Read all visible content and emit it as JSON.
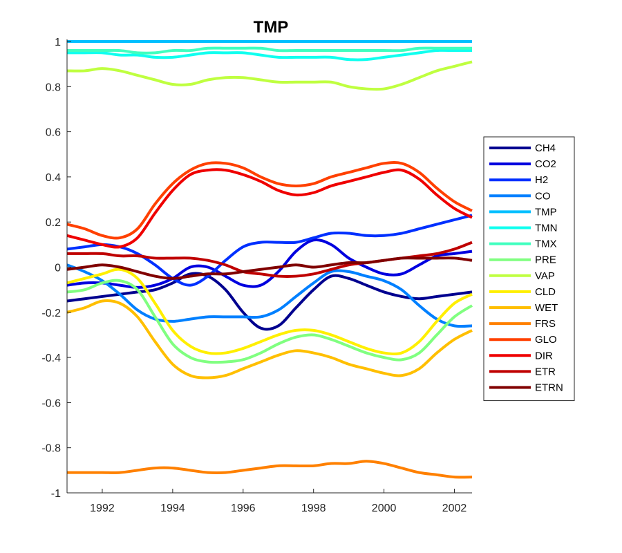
{
  "chart_data": {
    "type": "line",
    "title": "TMP",
    "xlabel": "",
    "ylabel": "",
    "xlim": [
      1991.0,
      2002.5
    ],
    "ylim": [
      -1,
      1
    ],
    "xticks": [
      1992,
      1994,
      1996,
      1998,
      2000,
      2002
    ],
    "yticks": [
      -1,
      -0.8,
      -0.6,
      -0.4,
      -0.2,
      0,
      0.2,
      0.4,
      0.6,
      0.8,
      1
    ],
    "grid": false,
    "legend_position": "right",
    "x": [
      1991.0,
      1991.5,
      1992.0,
      1992.5,
      1993.0,
      1993.5,
      1994.0,
      1994.5,
      1995.0,
      1995.5,
      1996.0,
      1996.5,
      1997.0,
      1997.5,
      1998.0,
      1998.5,
      1999.0,
      1999.5,
      2000.0,
      2000.5,
      2001.0,
      2001.5,
      2002.0,
      2002.5
    ],
    "series": [
      {
        "name": "CH4",
        "color": "#00008F",
        "values": [
          -0.15,
          -0.14,
          -0.13,
          -0.12,
          -0.11,
          -0.1,
          -0.07,
          -0.03,
          -0.04,
          -0.1,
          -0.2,
          -0.27,
          -0.26,
          -0.18,
          -0.1,
          -0.04,
          -0.05,
          -0.08,
          -0.11,
          -0.13,
          -0.14,
          -0.13,
          -0.12,
          -0.11
        ]
      },
      {
        "name": "CO2",
        "color": "#0000DF",
        "values": [
          -0.08,
          -0.07,
          -0.07,
          -0.08,
          -0.09,
          -0.08,
          -0.05,
          0.0,
          0.0,
          -0.04,
          -0.08,
          -0.08,
          -0.02,
          0.07,
          0.12,
          0.1,
          0.04,
          0.0,
          -0.03,
          -0.03,
          0.01,
          0.05,
          0.06,
          0.07
        ]
      },
      {
        "name": "H2",
        "color": "#0030FF",
        "values": [
          0.08,
          0.09,
          0.1,
          0.09,
          0.06,
          0.01,
          -0.05,
          -0.08,
          -0.04,
          0.03,
          0.09,
          0.11,
          0.11,
          0.11,
          0.13,
          0.15,
          0.15,
          0.14,
          0.14,
          0.15,
          0.17,
          0.19,
          0.21,
          0.23
        ]
      },
      {
        "name": "CO",
        "color": "#0080FF",
        "values": [
          0.01,
          -0.02,
          -0.06,
          -0.12,
          -0.19,
          -0.23,
          -0.24,
          -0.23,
          -0.22,
          -0.22,
          -0.22,
          -0.22,
          -0.19,
          -0.13,
          -0.07,
          -0.02,
          -0.02,
          -0.04,
          -0.06,
          -0.1,
          -0.17,
          -0.23,
          -0.26,
          -0.26
        ]
      },
      {
        "name": "TMP",
        "color": "#00BFFF",
        "values": [
          1.0,
          1.0,
          1.0,
          1.0,
          1.0,
          1.0,
          1.0,
          1.0,
          1.0,
          1.0,
          1.0,
          1.0,
          1.0,
          1.0,
          1.0,
          1.0,
          1.0,
          1.0,
          1.0,
          1.0,
          1.0,
          1.0,
          1.0,
          1.0
        ]
      },
      {
        "name": "TMN",
        "color": "#10FFEF",
        "values": [
          0.95,
          0.95,
          0.95,
          0.94,
          0.94,
          0.93,
          0.93,
          0.94,
          0.95,
          0.95,
          0.95,
          0.94,
          0.93,
          0.93,
          0.93,
          0.93,
          0.92,
          0.92,
          0.93,
          0.94,
          0.95,
          0.96,
          0.96,
          0.96
        ]
      },
      {
        "name": "TMX",
        "color": "#40FFBF",
        "values": [
          0.96,
          0.96,
          0.96,
          0.96,
          0.95,
          0.95,
          0.96,
          0.96,
          0.97,
          0.97,
          0.97,
          0.97,
          0.96,
          0.96,
          0.96,
          0.96,
          0.96,
          0.96,
          0.96,
          0.96,
          0.97,
          0.97,
          0.97,
          0.97
        ]
      },
      {
        "name": "PRE",
        "color": "#80FF80",
        "values": [
          -0.11,
          -0.1,
          -0.07,
          -0.06,
          -0.1,
          -0.22,
          -0.34,
          -0.4,
          -0.42,
          -0.42,
          -0.41,
          -0.38,
          -0.34,
          -0.31,
          -0.3,
          -0.32,
          -0.35,
          -0.38,
          -0.4,
          -0.41,
          -0.38,
          -0.3,
          -0.22,
          -0.17
        ]
      },
      {
        "name": "VAP",
        "color": "#BFFF40",
        "values": [
          0.87,
          0.87,
          0.88,
          0.87,
          0.85,
          0.83,
          0.81,
          0.81,
          0.83,
          0.84,
          0.84,
          0.83,
          0.82,
          0.82,
          0.82,
          0.82,
          0.8,
          0.79,
          0.79,
          0.81,
          0.84,
          0.87,
          0.89,
          0.91
        ]
      },
      {
        "name": "CLD",
        "color": "#FFEF00",
        "values": [
          -0.07,
          -0.05,
          -0.03,
          -0.01,
          -0.05,
          -0.16,
          -0.28,
          -0.35,
          -0.38,
          -0.38,
          -0.36,
          -0.33,
          -0.3,
          -0.28,
          -0.28,
          -0.3,
          -0.33,
          -0.36,
          -0.38,
          -0.38,
          -0.33,
          -0.24,
          -0.16,
          -0.12
        ]
      },
      {
        "name": "WET",
        "color": "#FFBF00",
        "values": [
          -0.2,
          -0.18,
          -0.15,
          -0.16,
          -0.22,
          -0.33,
          -0.43,
          -0.48,
          -0.49,
          -0.48,
          -0.45,
          -0.42,
          -0.39,
          -0.37,
          -0.38,
          -0.4,
          -0.43,
          -0.45,
          -0.47,
          -0.48,
          -0.45,
          -0.38,
          -0.32,
          -0.28
        ]
      },
      {
        "name": "FRS",
        "color": "#FF8000",
        "values": [
          -0.91,
          -0.91,
          -0.91,
          -0.91,
          -0.9,
          -0.89,
          -0.89,
          -0.9,
          -0.91,
          -0.91,
          -0.9,
          -0.89,
          -0.88,
          -0.88,
          -0.88,
          -0.87,
          -0.87,
          -0.86,
          -0.87,
          -0.89,
          -0.91,
          -0.92,
          -0.93,
          -0.93
        ]
      },
      {
        "name": "GLO",
        "color": "#FF4000",
        "values": [
          0.19,
          0.17,
          0.14,
          0.13,
          0.17,
          0.28,
          0.37,
          0.43,
          0.46,
          0.46,
          0.44,
          0.4,
          0.37,
          0.36,
          0.37,
          0.4,
          0.42,
          0.44,
          0.46,
          0.46,
          0.42,
          0.35,
          0.29,
          0.25
        ]
      },
      {
        "name": "DIR",
        "color": "#EF0000",
        "values": [
          0.14,
          0.12,
          0.1,
          0.09,
          0.13,
          0.24,
          0.34,
          0.41,
          0.43,
          0.43,
          0.41,
          0.38,
          0.34,
          0.32,
          0.33,
          0.36,
          0.38,
          0.4,
          0.42,
          0.43,
          0.39,
          0.32,
          0.26,
          0.22
        ]
      },
      {
        "name": "ETR",
        "color": "#BF0000",
        "values": [
          0.06,
          0.06,
          0.06,
          0.05,
          0.05,
          0.04,
          0.04,
          0.04,
          0.03,
          0.01,
          -0.02,
          -0.03,
          -0.04,
          -0.04,
          -0.03,
          -0.01,
          0.01,
          0.02,
          0.03,
          0.04,
          0.05,
          0.06,
          0.08,
          0.11
        ]
      },
      {
        "name": "ETRN",
        "color": "#800000",
        "values": [
          -0.01,
          0.0,
          0.01,
          0.0,
          -0.02,
          -0.04,
          -0.05,
          -0.04,
          -0.03,
          -0.03,
          -0.02,
          -0.01,
          0.0,
          0.01,
          0.0,
          0.01,
          0.02,
          0.02,
          0.03,
          0.04,
          0.04,
          0.04,
          0.04,
          0.03
        ]
      }
    ]
  }
}
